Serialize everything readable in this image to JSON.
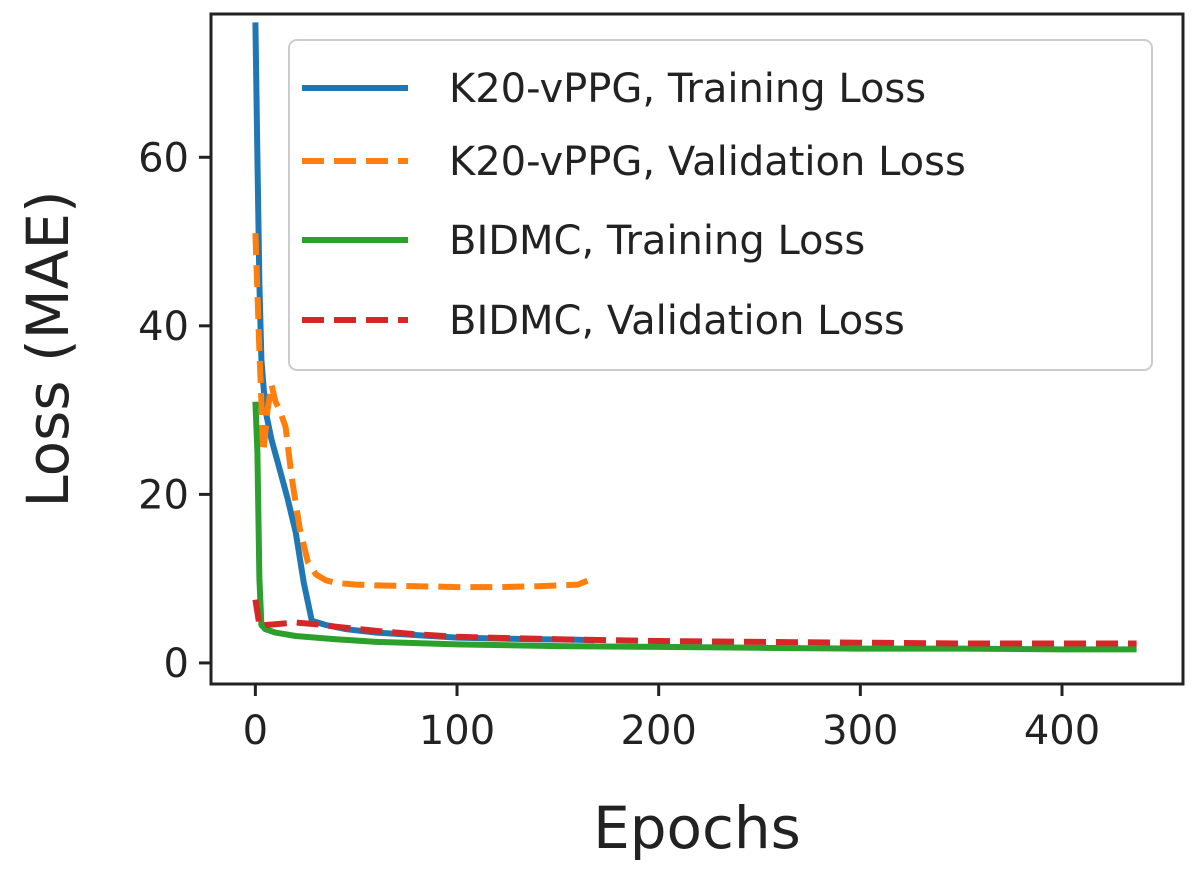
{
  "chart_data": {
    "type": "line",
    "title": "",
    "xlabel": "Epochs",
    "ylabel": "Loss (MAE)",
    "xlim": [
      -22,
      460
    ],
    "ylim": [
      -2.5,
      77
    ],
    "xticks": [
      0,
      100,
      200,
      300,
      400
    ],
    "yticks": [
      0,
      20,
      40,
      60
    ],
    "grid": false,
    "legend_location": "upper right",
    "series": [
      {
        "name": "K20-vPPG, Training Loss",
        "color": "#1f77b4",
        "style": "solid",
        "x": [
          0,
          1,
          2,
          3,
          5,
          8,
          12,
          16,
          20,
          24,
          28,
          35,
          45,
          60,
          80,
          100,
          120,
          140,
          160,
          168
        ],
        "y": [
          76,
          60,
          45,
          36,
          30,
          26.5,
          23,
          19.5,
          15.5,
          9.5,
          5.0,
          4.5,
          4.0,
          3.6,
          3.3,
          3.0,
          2.9,
          2.8,
          2.75,
          2.7
        ]
      },
      {
        "name": "K20-vPPG, Validation Loss",
        "color": "#ff7f0e",
        "style": "dashed",
        "x": [
          0,
          2,
          4,
          6,
          8,
          10,
          12,
          15,
          18,
          22,
          26,
          30,
          35,
          40,
          50,
          60,
          80,
          100,
          120,
          140,
          150,
          160,
          165,
          168
        ],
        "y": [
          51,
          37,
          25,
          30,
          33,
          31,
          30,
          28,
          22,
          16,
          12,
          10.5,
          9.8,
          9.5,
          9.3,
          9.2,
          9.1,
          9.0,
          9.0,
          9.1,
          9.2,
          9.3,
          9.8,
          9.0
        ]
      },
      {
        "name": "BIDMC, Training Loss",
        "color": "#2ca02c",
        "style": "solid",
        "x": [
          0,
          1,
          2,
          3,
          5,
          10,
          20,
          40,
          60,
          100,
          150,
          200,
          250,
          300,
          350,
          400,
          437
        ],
        "y": [
          31,
          25,
          10,
          4.5,
          4.0,
          3.6,
          3.2,
          2.8,
          2.5,
          2.2,
          2.0,
          1.9,
          1.8,
          1.7,
          1.7,
          1.6,
          1.6
        ]
      },
      {
        "name": "BIDMC, Validation Loss",
        "color": "#d62728",
        "style": "dashed",
        "x": [
          0,
          1,
          2,
          3,
          5,
          10,
          20,
          30,
          40,
          60,
          80,
          100,
          150,
          200,
          250,
          300,
          350,
          400,
          437
        ],
        "y": [
          7.5,
          6.0,
          4.5,
          4.3,
          4.5,
          4.6,
          4.8,
          4.6,
          4.3,
          3.8,
          3.4,
          3.1,
          2.8,
          2.6,
          2.5,
          2.4,
          2.3,
          2.3,
          2.3
        ]
      }
    ]
  }
}
